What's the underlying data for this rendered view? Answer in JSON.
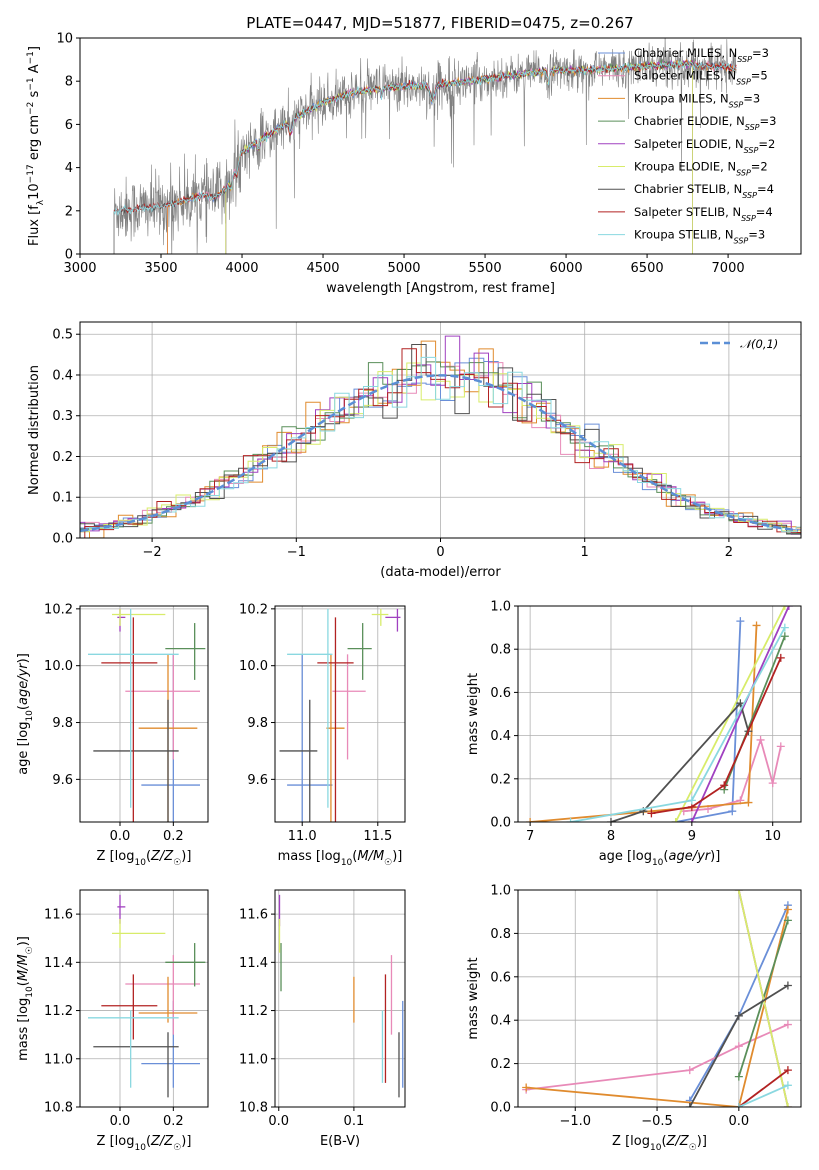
{
  "figure": {
    "title": "PLATE=0447, MJD=51877, FIBERID=0475, z=0.267"
  },
  "colors": {
    "chabrier_miles": "#6a8fd8",
    "salpeter_miles": "#e88ab8",
    "kroupa_miles": "#e08b2e",
    "chabrier_elodie": "#5a8f5a",
    "salpeter_elodie": "#a040c0",
    "kroupa_elodie": "#d8ec6a",
    "chabrier_stelib": "#505050",
    "salpeter_stelib": "#b22222",
    "kroupa_stelib": "#8ad8e0",
    "data": "#808080",
    "normal": "#5b8fd6"
  },
  "chart_data": [
    {
      "id": "spectrum",
      "type": "line",
      "xlabel": "wavelength [Angstrom, rest frame]",
      "ylabel": "Flux [f_λ10^-17 erg cm^-2 s^-1 A^-1]",
      "xlim": [
        3000,
        7450
      ],
      "ylim": [
        0,
        10
      ],
      "xticks": [
        3000,
        3500,
        4000,
        4500,
        5000,
        5500,
        6000,
        6500,
        7000
      ],
      "yticks": [
        0,
        2,
        4,
        6,
        8,
        10
      ],
      "grid": false,
      "legend_position": "right",
      "continuum": {
        "x": [
          3210,
          3500,
          3700,
          3900,
          4000,
          4100,
          4300,
          4500,
          4700,
          4900,
          5100,
          5300,
          5500,
          5700,
          5900,
          6100,
          6300,
          6500,
          6700,
          6900,
          7050
        ],
        "y": [
          2.0,
          2.2,
          2.6,
          3.0,
          4.7,
          5.2,
          6.2,
          7.0,
          7.5,
          7.7,
          7.8,
          7.9,
          8.1,
          8.3,
          8.5,
          8.5,
          8.6,
          8.7,
          8.8,
          8.7,
          8.6
        ]
      },
      "series": [
        {
          "name": "Chabrier MILES, N_SSP=3",
          "color_key": "chabrier_miles"
        },
        {
          "name": "Salpeter MILES, N_SSP=5",
          "color_key": "salpeter_miles"
        },
        {
          "name": "Kroupa MILES, N_SSP=3",
          "color_key": "kroupa_miles"
        },
        {
          "name": "Chabrier ELODIE, N_SSP=3",
          "color_key": "chabrier_elodie"
        },
        {
          "name": "Salpeter ELODIE, N_SSP=2",
          "color_key": "salpeter_elodie"
        },
        {
          "name": "Kroupa ELODIE, N_SSP=2",
          "color_key": "kroupa_elodie"
        },
        {
          "name": "Chabrier STELIB, N_SSP=4",
          "color_key": "chabrier_stelib"
        },
        {
          "name": "Salpeter STELIB, N_SSP=4",
          "color_key": "salpeter_stelib"
        },
        {
          "name": "Kroupa STELIB, N_SSP=3",
          "color_key": "kroupa_stelib"
        }
      ]
    },
    {
      "id": "residuals",
      "type": "line",
      "xlabel": "(data-model)/error",
      "ylabel": "Normed distribution",
      "xlim": [
        -2.5,
        2.5
      ],
      "ylim": [
        0,
        0.53
      ],
      "xticks": [
        -2,
        -1,
        0,
        1,
        2
      ],
      "xtick_labels": [
        "−2",
        "−1",
        "0",
        "1",
        "2"
      ],
      "yticks": [
        0,
        0.1,
        0.2,
        0.3,
        0.4,
        0.5
      ],
      "ytick_labels": [
        "0.0",
        "0.1",
        "0.2",
        "0.3",
        "0.4",
        "0.5"
      ],
      "grid": true,
      "legend_label": "𝒩(0,1)",
      "legend_position": "top-right",
      "bin_width": 0.1,
      "sigma": 1.0
    },
    {
      "id": "age_vs_Z",
      "type": "scatter",
      "xlabel": "Z [log10(Z/Z☉)]",
      "ylabel": "age [log10(age/yr)]",
      "xlim": [
        -0.15,
        0.33
      ],
      "ylim": [
        9.45,
        10.21
      ],
      "xticks": [
        0.0,
        0.2
      ],
      "xtick_labels": [
        "0.0",
        "0.2"
      ],
      "yticks": [
        9.6,
        9.8,
        10.0,
        10.2
      ],
      "ytick_labels": [
        "9.6",
        "9.8",
        "10.0",
        "10.2"
      ],
      "grid": true,
      "points": [
        {
          "k": "chabrier_miles",
          "x": 0.2,
          "y": 9.58,
          "xe": [
            0.08,
            0.3
          ],
          "ye": [
            9.45,
            10.04
          ]
        },
        {
          "k": "salpeter_miles",
          "x": 0.2,
          "y": 9.91,
          "xe": [
            0.02,
            0.3
          ],
          "ye": [
            9.67,
            10.04
          ]
        },
        {
          "k": "kroupa_miles",
          "x": 0.18,
          "y": 9.78,
          "xe": [
            0.07,
            0.29
          ],
          "ye": [
            9.45,
            10.04
          ]
        },
        {
          "k": "chabrier_elodie",
          "x": 0.28,
          "y": 10.06,
          "xe": [
            0.17,
            0.32
          ],
          "ye": [
            9.95,
            10.15
          ]
        },
        {
          "k": "salpeter_elodie",
          "x": 0.0,
          "y": 10.17,
          "xe": [
            -0.01,
            0.02
          ],
          "ye": [
            10.12,
            10.2
          ]
        },
        {
          "k": "kroupa_elodie",
          "x": 0.0,
          "y": 10.18,
          "xe": [
            -0.03,
            0.17
          ],
          "ye": [
            10.14,
            10.2
          ]
        },
        {
          "k": "chabrier_stelib",
          "x": 0.18,
          "y": 9.7,
          "xe": [
            -0.1,
            0.22
          ],
          "ye": [
            9.45,
            9.88
          ]
        },
        {
          "k": "salpeter_stelib",
          "x": 0.05,
          "y": 10.01,
          "xe": [
            -0.07,
            0.14
          ],
          "ye": [
            9.45,
            10.17
          ]
        },
        {
          "k": "kroupa_stelib",
          "x": 0.04,
          "y": 10.04,
          "xe": [
            -0.12,
            0.22
          ],
          "ye": [
            9.5,
            10.2
          ]
        }
      ]
    },
    {
      "id": "age_vs_mass",
      "type": "scatter",
      "xlabel": "mass [log10(M/M☉)]",
      "xlim": [
        10.82,
        11.68
      ],
      "ylim": [
        9.45,
        10.21
      ],
      "xticks": [
        11.0,
        11.5
      ],
      "xtick_labels": [
        "11.0",
        "11.5"
      ],
      "yticks": [
        9.6,
        9.8,
        10.0,
        10.2
      ],
      "ytick_labels": [
        "9.6",
        "9.8",
        "10.0",
        "10.2"
      ],
      "grid": true,
      "points": [
        {
          "k": "chabrier_miles",
          "x": 11.0,
          "y": 9.58,
          "xe": [
            10.9,
            11.2
          ],
          "ye": [
            9.45,
            10.04
          ]
        },
        {
          "k": "salpeter_miles",
          "x": 11.3,
          "y": 9.91,
          "xe": [
            11.2,
            11.42
          ],
          "ye": [
            9.67,
            10.04
          ]
        },
        {
          "k": "kroupa_miles",
          "x": 11.19,
          "y": 9.78,
          "xe": [
            11.16,
            11.28
          ],
          "ye": [
            9.45,
            10.04
          ]
        },
        {
          "k": "chabrier_elodie",
          "x": 11.4,
          "y": 10.06,
          "xe": [
            11.3,
            11.46
          ],
          "ye": [
            9.95,
            10.15
          ]
        },
        {
          "k": "salpeter_elodie",
          "x": 11.63,
          "y": 10.17,
          "xe": [
            11.55,
            11.65
          ],
          "ye": [
            10.12,
            10.2
          ]
        },
        {
          "k": "kroupa_elodie",
          "x": 11.52,
          "y": 10.18,
          "xe": [
            11.46,
            11.57
          ],
          "ye": [
            10.14,
            10.2
          ]
        },
        {
          "k": "chabrier_stelib",
          "x": 11.05,
          "y": 9.7,
          "xe": [
            10.85,
            11.1
          ],
          "ye": [
            9.45,
            9.88
          ]
        },
        {
          "k": "salpeter_stelib",
          "x": 11.22,
          "y": 10.01,
          "xe": [
            11.1,
            11.34
          ],
          "ye": [
            9.45,
            10.17
          ]
        },
        {
          "k": "kroupa_stelib",
          "x": 11.17,
          "y": 10.04,
          "xe": [
            10.9,
            11.2
          ],
          "ye": [
            9.5,
            10.2
          ]
        }
      ]
    },
    {
      "id": "massweight_vs_age",
      "type": "line",
      "xlabel": "age [log10(age/yr)]",
      "ylabel": "mass weight",
      "xlim": [
        6.85,
        10.35
      ],
      "ylim": [
        0,
        1
      ],
      "xticks": [
        7,
        8,
        9,
        10
      ],
      "yticks": [
        0,
        0.2,
        0.4,
        0.6,
        0.8,
        1.0
      ],
      "ytick_labels": [
        "0.0",
        "0.2",
        "0.4",
        "0.6",
        "0.8",
        "1.0"
      ],
      "grid": true,
      "series": [
        {
          "k": "chabrier_miles",
          "x": [
            8.8,
            9.5,
            9.6
          ],
          "y": [
            0.0,
            0.05,
            0.93
          ]
        },
        {
          "k": "salpeter_miles",
          "x": [
            8.9,
            9.2,
            9.6,
            9.85,
            10.0,
            10.1
          ],
          "y": [
            0.05,
            0.06,
            0.1,
            0.38,
            0.18,
            0.35
          ]
        },
        {
          "k": "kroupa_miles",
          "x": [
            7.0,
            8.5,
            9.7,
            9.8
          ],
          "y": [
            0.0,
            0.05,
            0.09,
            0.91
          ]
        },
        {
          "k": "chabrier_elodie",
          "x": [
            9.4,
            10.15
          ],
          "y": [
            0.15,
            0.86
          ]
        },
        {
          "k": "salpeter_elodie",
          "x": [
            9.0,
            10.2
          ],
          "y": [
            0.0,
            1.0
          ]
        },
        {
          "k": "kroupa_elodie",
          "x": [
            8.8,
            10.15
          ],
          "y": [
            0.0,
            1.0
          ]
        },
        {
          "k": "chabrier_stelib",
          "x": [
            8.0,
            8.4,
            9.6,
            9.7
          ],
          "y": [
            0.0,
            0.05,
            0.55,
            0.42
          ]
        },
        {
          "k": "salpeter_stelib",
          "x": [
            8.5,
            9.0,
            9.4,
            10.1
          ],
          "y": [
            0.04,
            0.07,
            0.17,
            0.76
          ]
        },
        {
          "k": "kroupa_stelib",
          "x": [
            7.5,
            9.0,
            10.15
          ],
          "y": [
            0.0,
            0.1,
            0.9
          ]
        }
      ]
    },
    {
      "id": "mass_vs_Z",
      "type": "scatter",
      "xlabel": "Z [log10(Z/Z☉)]",
      "ylabel": "mass [log10(M/M☉)]",
      "xlim": [
        -0.15,
        0.33
      ],
      "ylim": [
        10.8,
        11.7
      ],
      "xticks": [
        0.0,
        0.2
      ],
      "xtick_labels": [
        "0.0",
        "0.2"
      ],
      "yticks": [
        10.8,
        11.0,
        11.2,
        11.4,
        11.6
      ],
      "ytick_labels": [
        "10.8",
        "11.0",
        "11.2",
        "11.4",
        "11.6"
      ],
      "grid": true,
      "points": [
        {
          "k": "chabrier_miles",
          "x": 0.2,
          "y": 10.98,
          "xe": [
            0.08,
            0.3
          ],
          "ye": [
            10.88,
            11.24
          ]
        },
        {
          "k": "salpeter_miles",
          "x": 0.2,
          "y": 11.31,
          "xe": [
            0.02,
            0.3
          ],
          "ye": [
            11.1,
            11.43
          ]
        },
        {
          "k": "kroupa_miles",
          "x": 0.18,
          "y": 11.19,
          "xe": [
            0.07,
            0.29
          ],
          "ye": [
            11.15,
            11.34
          ]
        },
        {
          "k": "chabrier_elodie",
          "x": 0.28,
          "y": 11.4,
          "xe": [
            0.17,
            0.32
          ],
          "ye": [
            11.3,
            11.48
          ]
        },
        {
          "k": "salpeter_elodie",
          "x": 0.0,
          "y": 11.63,
          "xe": [
            -0.01,
            0.02
          ],
          "ye": [
            11.56,
            11.68
          ]
        },
        {
          "k": "kroupa_elodie",
          "x": 0.0,
          "y": 11.52,
          "xe": [
            -0.03,
            0.17
          ],
          "ye": [
            11.46,
            11.58
          ]
        },
        {
          "k": "chabrier_stelib",
          "x": 0.18,
          "y": 11.05,
          "xe": [
            -0.1,
            0.22
          ],
          "ye": [
            10.84,
            11.11
          ]
        },
        {
          "k": "salpeter_stelib",
          "x": 0.05,
          "y": 11.22,
          "xe": [
            -0.07,
            0.14
          ],
          "ye": [
            11.08,
            11.35
          ]
        },
        {
          "k": "kroupa_stelib",
          "x": 0.04,
          "y": 11.17,
          "xe": [
            -0.12,
            0.22
          ],
          "ye": [
            10.88,
            11.2
          ]
        }
      ]
    },
    {
      "id": "mass_vs_ebv",
      "type": "scatter",
      "xlabel": "E(B-V)",
      "xlim": [
        -0.005,
        0.168
      ],
      "ylim": [
        10.8,
        11.7
      ],
      "xticks": [
        0.0,
        0.1
      ],
      "xtick_labels": [
        "0.0",
        "0.1"
      ],
      "yticks": [
        10.8,
        11.0,
        11.2,
        11.4,
        11.6
      ],
      "ytick_labels": [
        "10.8",
        "11.0",
        "11.2",
        "11.4",
        "11.6"
      ],
      "grid": true,
      "points": [
        {
          "k": "chabrier_miles",
          "x": 0.165,
          "ye": [
            10.88,
            11.24
          ]
        },
        {
          "k": "salpeter_miles",
          "x": 0.15,
          "ye": [
            11.1,
            11.43
          ]
        },
        {
          "k": "kroupa_miles",
          "x": 0.1,
          "ye": [
            11.15,
            11.34
          ]
        },
        {
          "k": "chabrier_elodie",
          "x": 0.003,
          "ye": [
            11.28,
            11.48
          ]
        },
        {
          "k": "salpeter_elodie",
          "x": 0.001,
          "ye": [
            11.55,
            11.68
          ]
        },
        {
          "k": "kroupa_elodie",
          "x": 0.001,
          "ye": [
            11.44,
            11.58
          ]
        },
        {
          "k": "chabrier_stelib",
          "x": 0.16,
          "ye": [
            10.84,
            11.11
          ]
        },
        {
          "k": "salpeter_stelib",
          "x": 0.142,
          "ye": [
            10.9,
            11.35
          ]
        },
        {
          "k": "kroupa_stelib",
          "x": 0.138,
          "ye": [
            10.9,
            11.2
          ]
        }
      ]
    },
    {
      "id": "massweight_vs_Z",
      "type": "line",
      "xlabel": "Z [log10(Z/Z☉)]",
      "ylabel": "mass weight",
      "xlim": [
        -1.35,
        0.38
      ],
      "ylim": [
        0,
        1
      ],
      "xticks": [
        -1.0,
        -0.5,
        0.0
      ],
      "xtick_labels": [
        "−1.0",
        "−0.5",
        "0.0"
      ],
      "yticks": [
        0,
        0.2,
        0.4,
        0.6,
        0.8,
        1.0
      ],
      "ytick_labels": [
        "0.0",
        "0.2",
        "0.4",
        "0.6",
        "0.8",
        "1.0"
      ],
      "grid": true,
      "series": [
        {
          "k": "chabrier_miles",
          "x": [
            -0.3,
            0.0,
            0.3
          ],
          "y": [
            0.03,
            0.42,
            0.93
          ]
        },
        {
          "k": "salpeter_miles",
          "x": [
            -1.3,
            -0.3,
            0.0,
            0.3
          ],
          "y": [
            0.08,
            0.17,
            0.28,
            0.38
          ]
        },
        {
          "k": "kroupa_miles",
          "x": [
            -1.3,
            0.0,
            0.3
          ],
          "y": [
            0.09,
            0.0,
            0.91
          ]
        },
        {
          "k": "chabrier_elodie",
          "x": [
            0.0,
            0.3
          ],
          "y": [
            0.14,
            0.86
          ]
        },
        {
          "k": "salpeter_elodie",
          "x": [
            0.0,
            0.3
          ],
          "y": [
            1.0,
            0.0
          ]
        },
        {
          "k": "kroupa_elodie",
          "x": [
            0.0,
            0.3
          ],
          "y": [
            1.0,
            0.0
          ]
        },
        {
          "k": "chabrier_stelib",
          "x": [
            -0.3,
            0.0,
            0.3
          ],
          "y": [
            0.0,
            0.42,
            0.56
          ]
        },
        {
          "k": "salpeter_stelib",
          "x": [
            0.0,
            0.3
          ],
          "y": [
            0.0,
            0.17
          ]
        },
        {
          "k": "kroupa_stelib",
          "x": [
            0.0,
            0.3
          ],
          "y": [
            0.0,
            0.1
          ]
        }
      ]
    }
  ]
}
